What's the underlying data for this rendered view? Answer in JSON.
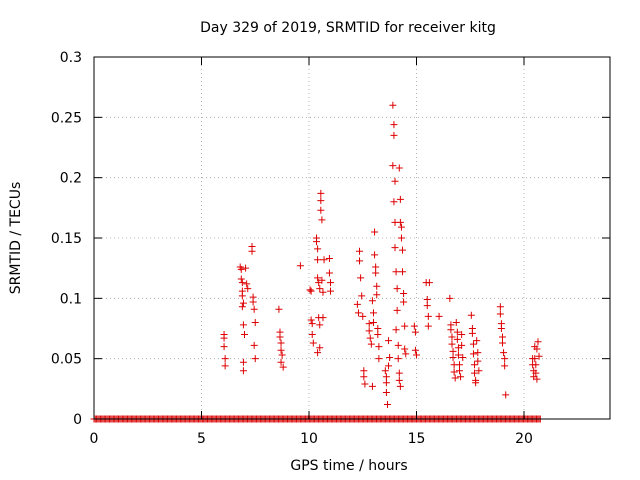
{
  "chart_data": {
    "type": "scatter",
    "title": "Day 329 of 2019, SRMTID for receiver kitg",
    "xlabel": "GPS time / hours",
    "ylabel": "SRMTID / TECUs",
    "xlim": [
      0,
      24
    ],
    "ylim": [
      0,
      0.3
    ],
    "xticks": [
      0,
      5,
      10,
      15,
      20
    ],
    "xtick_labels": [
      "0",
      "5",
      "10",
      "15",
      "20"
    ],
    "yticks": [
      0,
      0.05,
      0.1,
      0.15,
      0.2,
      0.25,
      0.3
    ],
    "ytick_labels": [
      "0",
      "0.05",
      "0.1",
      "0.15",
      "0.2",
      "0.25",
      "0.3"
    ],
    "grid": true,
    "marker": "+",
    "color": "#dd0000",
    "zero_range": [
      0,
      20.8
    ],
    "series": [
      {
        "name": "SRMTID",
        "points": [
          [
            6.05,
            0.07
          ],
          [
            6.05,
            0.067
          ],
          [
            6.05,
            0.06
          ],
          [
            6.1,
            0.05
          ],
          [
            6.1,
            0.044
          ],
          [
            6.8,
            0.126
          ],
          [
            6.85,
            0.124
          ],
          [
            6.85,
            0.116
          ],
          [
            6.9,
            0.113
          ],
          [
            6.9,
            0.106
          ],
          [
            6.9,
            0.102
          ],
          [
            6.95,
            0.096
          ],
          [
            6.9,
            0.093
          ],
          [
            6.95,
            0.078
          ],
          [
            7.0,
            0.07
          ],
          [
            6.95,
            0.047
          ],
          [
            6.95,
            0.04
          ],
          [
            7.05,
            0.125
          ],
          [
            7.1,
            0.112
          ],
          [
            7.15,
            0.108
          ],
          [
            7.35,
            0.143
          ],
          [
            7.35,
            0.139
          ],
          [
            7.4,
            0.101
          ],
          [
            7.4,
            0.097
          ],
          [
            7.45,
            0.091
          ],
          [
            7.5,
            0.08
          ],
          [
            7.45,
            0.061
          ],
          [
            7.5,
            0.05
          ],
          [
            8.6,
            0.091
          ],
          [
            8.65,
            0.072
          ],
          [
            8.65,
            0.068
          ],
          [
            8.7,
            0.063
          ],
          [
            8.7,
            0.057
          ],
          [
            8.75,
            0.053
          ],
          [
            8.7,
            0.047
          ],
          [
            8.8,
            0.043
          ],
          [
            9.6,
            0.127
          ],
          [
            10.05,
            0.107
          ],
          [
            10.1,
            0.106
          ],
          [
            10.1,
            0.082
          ],
          [
            10.15,
            0.079
          ],
          [
            10.15,
            0.07
          ],
          [
            10.2,
            0.063
          ],
          [
            10.35,
            0.15
          ],
          [
            10.35,
            0.147
          ],
          [
            10.4,
            0.141
          ],
          [
            10.4,
            0.132
          ],
          [
            10.4,
            0.117
          ],
          [
            10.45,
            0.113
          ],
          [
            10.5,
            0.108
          ],
          [
            10.45,
            0.084
          ],
          [
            10.5,
            0.078
          ],
          [
            10.5,
            0.059
          ],
          [
            10.4,
            0.055
          ],
          [
            10.55,
            0.187
          ],
          [
            10.55,
            0.181
          ],
          [
            10.55,
            0.173
          ],
          [
            10.6,
            0.165
          ],
          [
            10.6,
            0.115
          ],
          [
            10.65,
            0.105
          ],
          [
            10.65,
            0.084
          ],
          [
            10.7,
            0.132
          ],
          [
            10.95,
            0.133
          ],
          [
            10.95,
            0.121
          ],
          [
            11.0,
            0.113
          ],
          [
            11.0,
            0.106
          ],
          [
            12.25,
            0.095
          ],
          [
            12.3,
            0.088
          ],
          [
            12.35,
            0.139
          ],
          [
            12.35,
            0.131
          ],
          [
            12.4,
            0.117
          ],
          [
            12.45,
            0.102
          ],
          [
            12.5,
            0.085
          ],
          [
            12.55,
            0.04
          ],
          [
            12.55,
            0.035
          ],
          [
            12.6,
            0.029
          ],
          [
            12.8,
            0.079
          ],
          [
            12.8,
            0.073
          ],
          [
            12.85,
            0.067
          ],
          [
            12.9,
            0.062
          ],
          [
            12.95,
            0.098
          ],
          [
            13.0,
            0.088
          ],
          [
            13.0,
            0.08
          ],
          [
            12.95,
            0.027
          ],
          [
            13.05,
            0.155
          ],
          [
            13.05,
            0.136
          ],
          [
            13.1,
            0.126
          ],
          [
            13.1,
            0.121
          ],
          [
            13.15,
            0.11
          ],
          [
            13.15,
            0.103
          ],
          [
            13.2,
            0.075
          ],
          [
            13.2,
            0.07
          ],
          [
            13.25,
            0.06
          ],
          [
            13.25,
            0.05
          ],
          [
            13.55,
            0.04
          ],
          [
            13.6,
            0.035
          ],
          [
            13.6,
            0.03
          ],
          [
            13.6,
            0.022
          ],
          [
            13.65,
            0.012
          ],
          [
            13.7,
            0.065
          ],
          [
            13.75,
            0.051
          ],
          [
            13.7,
            0.044
          ],
          [
            13.9,
            0.26
          ],
          [
            13.95,
            0.244
          ],
          [
            13.95,
            0.235
          ],
          [
            13.9,
            0.21
          ],
          [
            14.0,
            0.197
          ],
          [
            13.95,
            0.18
          ],
          [
            14.0,
            0.163
          ],
          [
            14.0,
            0.142
          ],
          [
            14.05,
            0.122
          ],
          [
            14.1,
            0.108
          ],
          [
            14.1,
            0.09
          ],
          [
            14.05,
            0.074
          ],
          [
            14.15,
            0.061
          ],
          [
            14.15,
            0.05
          ],
          [
            14.2,
            0.038
          ],
          [
            14.2,
            0.032
          ],
          [
            14.25,
            0.027
          ],
          [
            14.2,
            0.208
          ],
          [
            14.25,
            0.182
          ],
          [
            14.25,
            0.163
          ],
          [
            14.3,
            0.159
          ],
          [
            14.3,
            0.15
          ],
          [
            14.35,
            0.14
          ],
          [
            14.35,
            0.122
          ],
          [
            14.4,
            0.104
          ],
          [
            14.4,
            0.097
          ],
          [
            14.45,
            0.077
          ],
          [
            14.45,
            0.058
          ],
          [
            14.5,
            0.054
          ],
          [
            14.9,
            0.077
          ],
          [
            14.95,
            0.072
          ],
          [
            14.95,
            0.057
          ],
          [
            15.0,
            0.053
          ],
          [
            15.45,
            0.113
          ],
          [
            15.5,
            0.099
          ],
          [
            15.5,
            0.094
          ],
          [
            15.55,
            0.085
          ],
          [
            15.55,
            0.077
          ],
          [
            15.6,
            0.113
          ],
          [
            16.05,
            0.085
          ],
          [
            16.55,
            0.1
          ],
          [
            16.6,
            0.078
          ],
          [
            16.6,
            0.074
          ],
          [
            16.65,
            0.068
          ],
          [
            16.65,
            0.062
          ],
          [
            16.7,
            0.056
          ],
          [
            16.7,
            0.051
          ],
          [
            16.75,
            0.045
          ],
          [
            16.75,
            0.039
          ],
          [
            16.8,
            0.034
          ],
          [
            16.85,
            0.08
          ],
          [
            16.9,
            0.072
          ],
          [
            16.9,
            0.066
          ],
          [
            16.95,
            0.059
          ],
          [
            16.95,
            0.053
          ],
          [
            17.0,
            0.045
          ],
          [
            17.0,
            0.04
          ],
          [
            17.05,
            0.035
          ],
          [
            17.1,
            0.07
          ],
          [
            17.1,
            0.061
          ],
          [
            17.15,
            0.051
          ],
          [
            17.55,
            0.086
          ],
          [
            17.6,
            0.075
          ],
          [
            17.6,
            0.071
          ],
          [
            17.65,
            0.062
          ],
          [
            17.65,
            0.054
          ],
          [
            17.7,
            0.045
          ],
          [
            17.7,
            0.038
          ],
          [
            17.75,
            0.032
          ],
          [
            17.75,
            0.03
          ],
          [
            17.8,
            0.065
          ],
          [
            17.85,
            0.055
          ],
          [
            17.85,
            0.048
          ],
          [
            17.9,
            0.04
          ],
          [
            18.9,
            0.093
          ],
          [
            18.9,
            0.087
          ],
          [
            18.95,
            0.079
          ],
          [
            18.95,
            0.075
          ],
          [
            19.0,
            0.068
          ],
          [
            19.0,
            0.063
          ],
          [
            19.05,
            0.055
          ],
          [
            19.1,
            0.05
          ],
          [
            19.1,
            0.044
          ],
          [
            19.15,
            0.02
          ],
          [
            20.4,
            0.05
          ],
          [
            20.4,
            0.045
          ],
          [
            20.45,
            0.04
          ],
          [
            20.45,
            0.035
          ],
          [
            20.5,
            0.06
          ],
          [
            20.5,
            0.05
          ],
          [
            20.55,
            0.045
          ],
          [
            20.55,
            0.038
          ],
          [
            20.6,
            0.033
          ],
          [
            20.65,
            0.064
          ],
          [
            20.6,
            0.058
          ],
          [
            20.7,
            0.052
          ]
        ]
      }
    ]
  }
}
